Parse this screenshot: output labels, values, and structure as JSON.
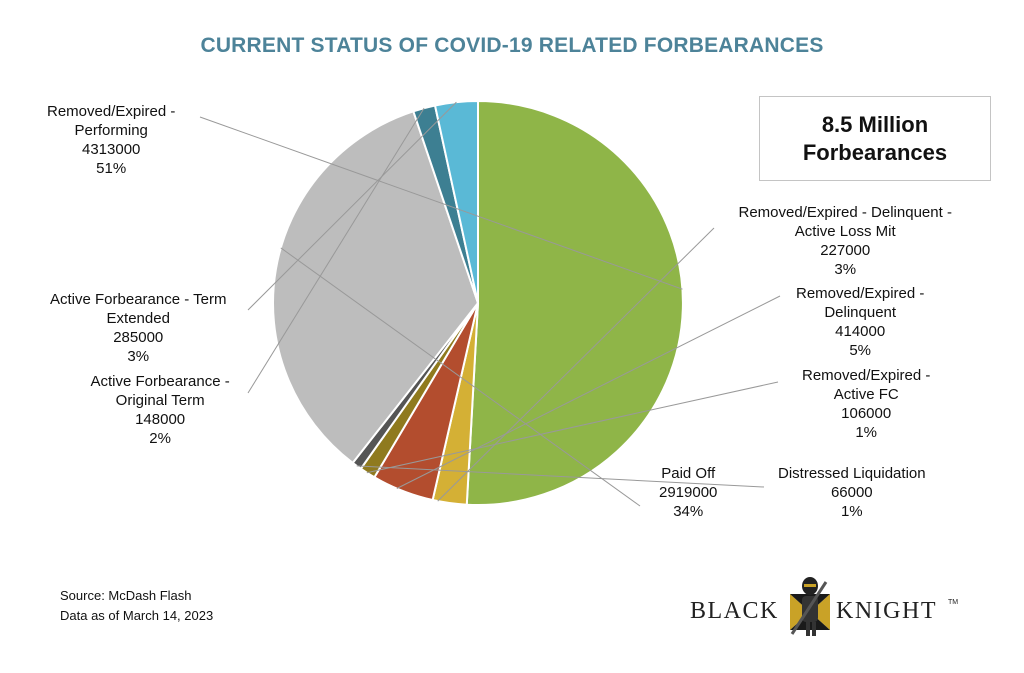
{
  "title": "CURRENT STATUS OF COVID-19 RELATED FORBEARANCES",
  "callout": {
    "line1": "8.5 Million",
    "line2": "Forbearances"
  },
  "source": {
    "line1": "Source: McDash Flash",
    "line2": "Data as of March 14, 2023"
  },
  "logo": {
    "left_text": "BLACK",
    "right_text": "KNIGHT",
    "tm": "TM"
  },
  "chart_data": {
    "type": "pie",
    "title": "CURRENT STATUS OF COVID-19 RELATED FORBEARANCES",
    "start_angle_deg": 90,
    "direction": "clockwise",
    "slices": [
      {
        "label": "Removed/Expired - Performing",
        "value": 4313000,
        "percent": "51%",
        "color": "#8fb548",
        "label_lines": [
          "Removed/Expired -",
          "Performing",
          "4313000",
          "51%"
        ]
      },
      {
        "label": "Removed/Expired - Delinquent - Active Loss Mit",
        "value": 227000,
        "percent": "3%",
        "color": "#d4b035",
        "label_lines": [
          "Removed/Expired - Delinquent -",
          "Active Loss Mit",
          "227000",
          "3%"
        ]
      },
      {
        "label": "Removed/Expired - Delinquent",
        "value": 414000,
        "percent": "5%",
        "color": "#b34d2e",
        "label_lines": [
          "Removed/Expired -",
          "Delinquent",
          "414000",
          "5%"
        ]
      },
      {
        "label": "Removed/Expired - Active FC",
        "value": 106000,
        "percent": "1%",
        "color": "#8f7a1e",
        "label_lines": [
          "Removed/Expired -",
          "Active FC",
          "106000",
          "1%"
        ]
      },
      {
        "label": "Distressed Liquidation",
        "value": 66000,
        "percent": "1%",
        "color": "#555555",
        "label_lines": [
          "Distressed Liquidation",
          "66000",
          "1%"
        ]
      },
      {
        "label": "Paid Off",
        "value": 2919000,
        "percent": "34%",
        "color": "#bdbdbd",
        "label_lines": [
          "Paid Off",
          "2919000",
          "34%"
        ]
      },
      {
        "label": "Active Forbearance - Original Term",
        "value": 148000,
        "percent": "2%",
        "color": "#3d7f92",
        "label_lines": [
          "Active Forbearance -",
          "Original Term",
          "148000",
          "2%"
        ]
      },
      {
        "label": "Active Forbearance - Term Extended",
        "value": 285000,
        "percent": "3%",
        "color": "#5ab9d6",
        "label_lines": [
          "Active Forbearance - Term",
          "Extended",
          "285000",
          "3%"
        ]
      }
    ]
  }
}
